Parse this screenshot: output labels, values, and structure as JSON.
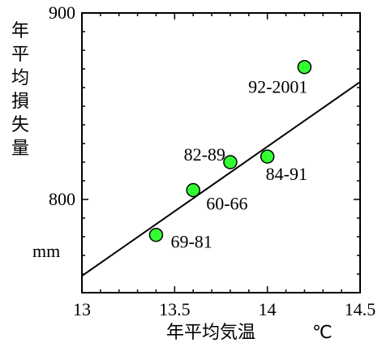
{
  "chart_data": {
    "type": "scatter",
    "title": "",
    "xlabel": "年平均気温",
    "x_unit": "℃",
    "ylabel": "年平均損失量",
    "y_unit": "mm",
    "xlim": [
      13.0,
      14.5
    ],
    "ylim": [
      750,
      900
    ],
    "x_ticks": [
      "13",
      "13.5",
      "14",
      "14.5"
    ],
    "y_ticks": [
      "800",
      "900"
    ],
    "grid": false,
    "marker_color": "#33ff33",
    "points": [
      {
        "label": "69-81",
        "x": 13.4,
        "y": 781
      },
      {
        "label": "60-66",
        "x": 13.6,
        "y": 805
      },
      {
        "label": "82-89",
        "x": 13.8,
        "y": 820
      },
      {
        "label": "84-91",
        "x": 14.0,
        "y": 823
      },
      {
        "label": "92-2001",
        "x": 14.2,
        "y": 871
      }
    ],
    "trendline": {
      "x": [
        13.0,
        14.5
      ],
      "y": [
        759,
        863
      ]
    }
  }
}
